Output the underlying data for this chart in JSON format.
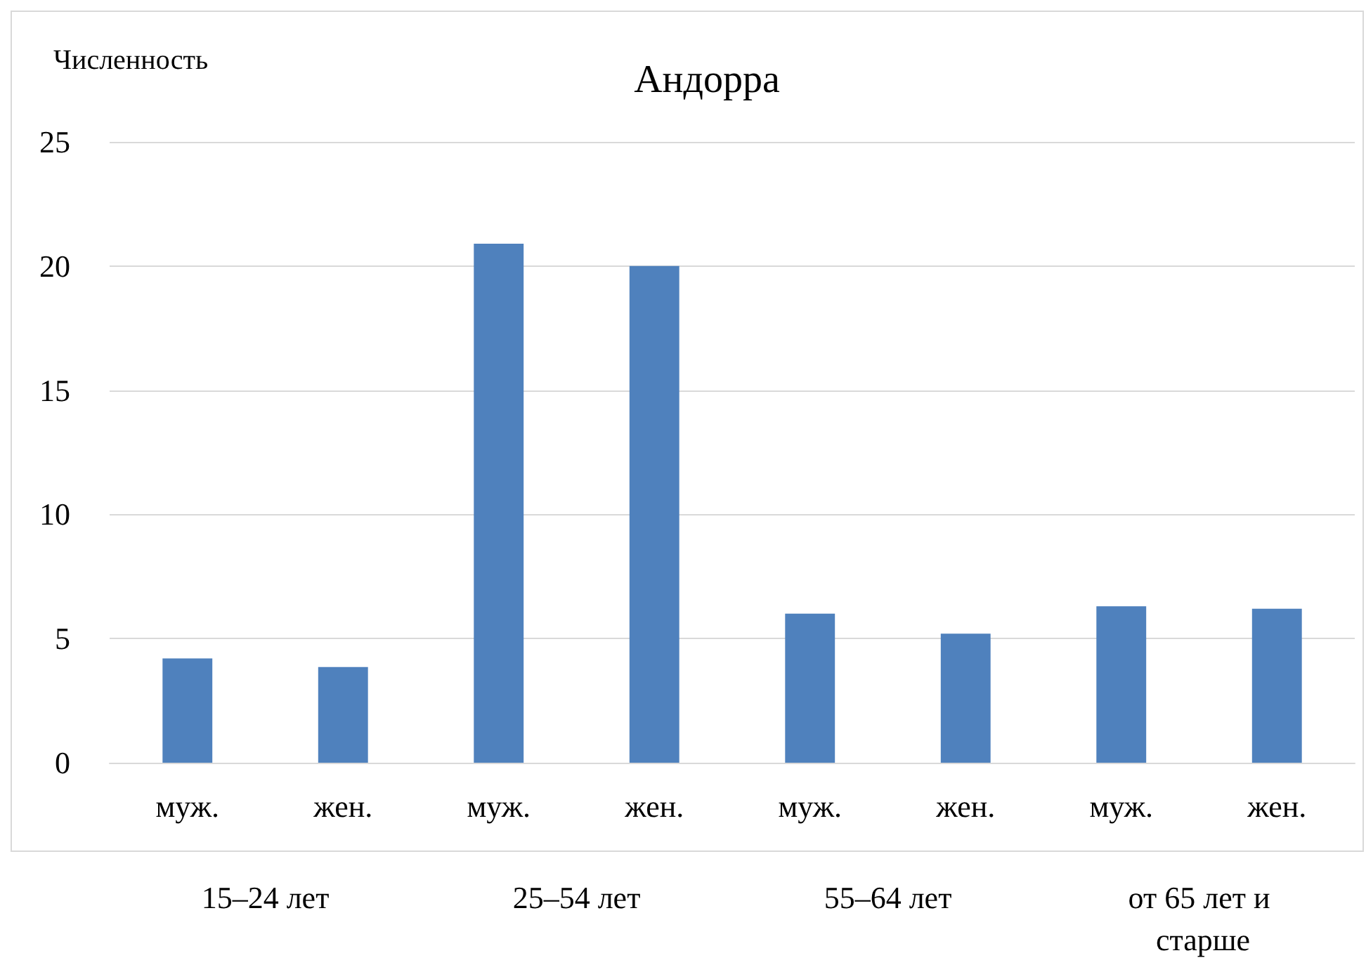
{
  "chart_data": {
    "type": "bar",
    "title": "Андорра",
    "ylabel": "Численность",
    "categories": [
      "муж.",
      "жен.",
      "муж.",
      "жен.",
      "муж.",
      "жен.",
      "муж.",
      "жен."
    ],
    "values": [
      4.2,
      3.85,
      20.9,
      20.0,
      6.0,
      5.2,
      6.3,
      6.2
    ],
    "color": "#4f81bd",
    "ylim": [
      0,
      25
    ],
    "yticks": [
      0,
      5,
      10,
      15,
      20,
      25
    ],
    "grid": "y",
    "annotations": [
      "15–24 лет",
      "25–54 лет",
      "55–64 лет",
      "от 65 лет и старше"
    ]
  }
}
